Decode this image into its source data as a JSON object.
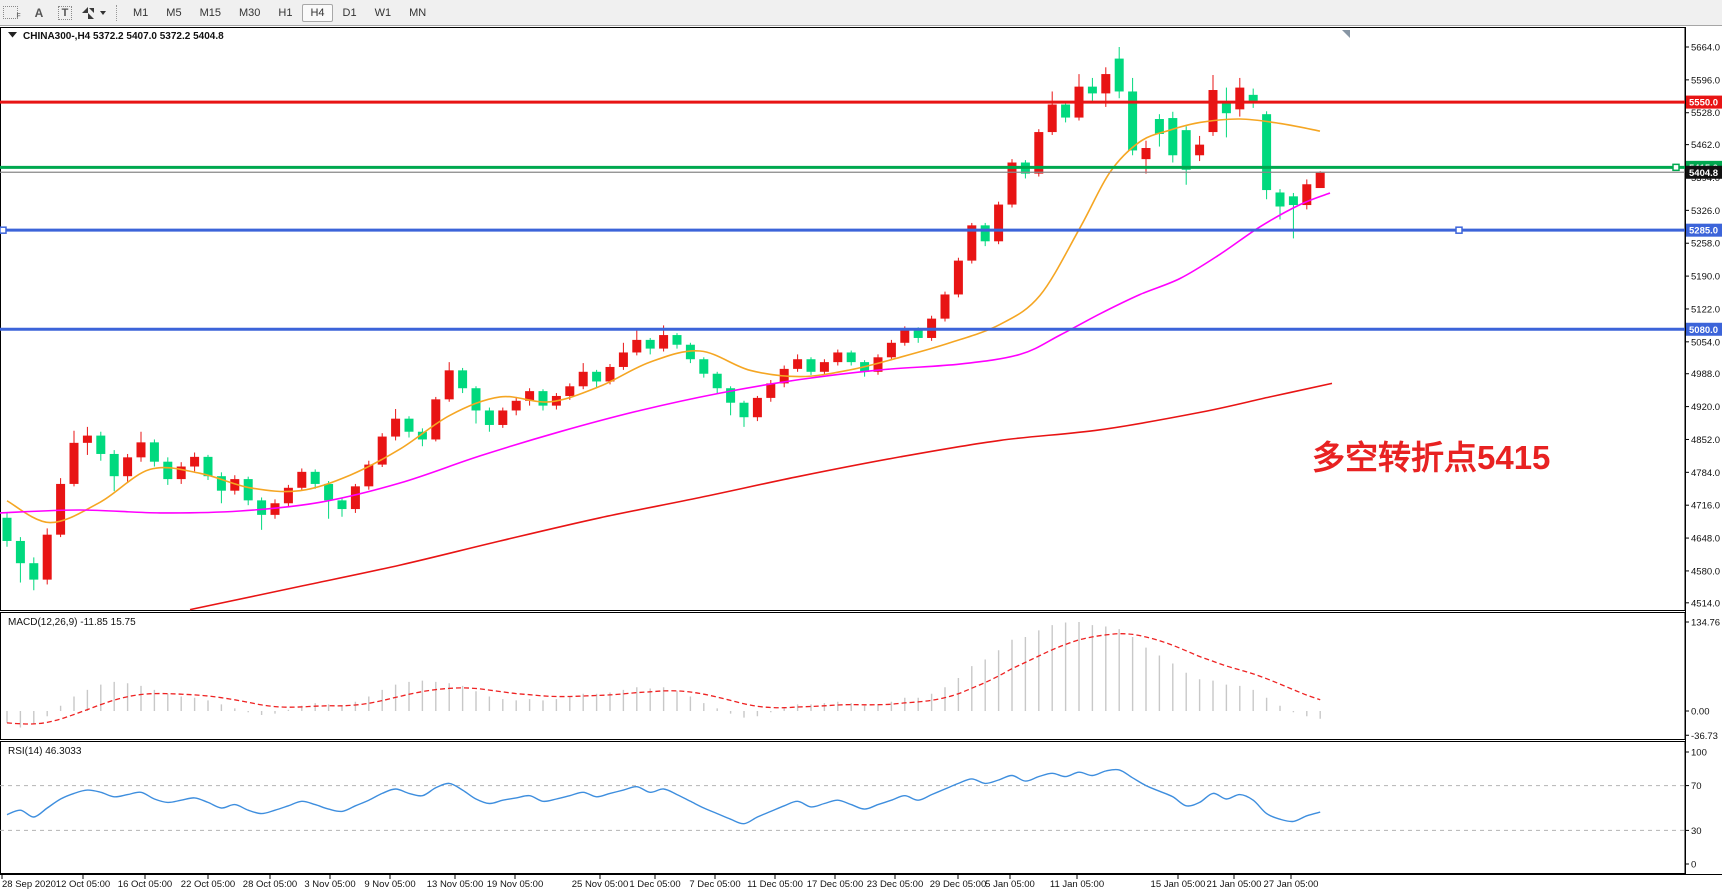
{
  "toolbar": {
    "tools": [
      {
        "name": "shapes-tool",
        "label": "F"
      },
      {
        "name": "text-tool",
        "label": "A"
      },
      {
        "name": "textbox-tool",
        "label": "T"
      },
      {
        "name": "arrow-tools",
        "label": ""
      }
    ],
    "timeframes": [
      "M1",
      "M5",
      "M15",
      "M30",
      "H1",
      "H4",
      "D1",
      "W1",
      "MN"
    ],
    "active_timeframe": "H4"
  },
  "chart": {
    "title_text": "CHINA300-,H4 5372.2 5407.0 5372.2 5404.8",
    "symbol": "CHINA300-",
    "period": "H4",
    "ohlc": {
      "open": "5372.2",
      "high": "5407.0",
      "low": "5372.2",
      "close": "5404.8"
    },
    "annotation": {
      "text": "多空转折点5415",
      "color": "#e82222"
    }
  },
  "chart_data": {
    "type": "candlestick",
    "title": "CHINA300- H4",
    "up_color_convention": "red-up-green-down",
    "ylim": [
      4514,
      5664
    ],
    "price_ticks": [
      5664.0,
      5596.0,
      5528.0,
      5462.0,
      5394.0,
      5326.0,
      5258.0,
      5190.0,
      5122.0,
      5054.0,
      4988.0,
      4920.0,
      4852.0,
      4784.0,
      4716.0,
      4648.0,
      4580.0,
      4514.0
    ],
    "current_price": {
      "value": 5404.8,
      "label": "5404.8"
    },
    "hlines": [
      {
        "price": 5550.0,
        "label": "5550.0",
        "color": "#e81414",
        "width": 3,
        "handles": []
      },
      {
        "price": 5415.0,
        "label": "5415.0",
        "color": "#00a84f",
        "width": 3,
        "handles": [
          1676
        ]
      },
      {
        "price": 5285.0,
        "label": "5285.0",
        "color": "#3c64d9",
        "width": 3,
        "handles": [
          3,
          1459
        ]
      },
      {
        "price": 5080.0,
        "label": "5080.0",
        "color": "#3c64d9",
        "width": 3,
        "handles": []
      }
    ],
    "date_ticks": [
      [
        2,
        "28 Sep 2020"
      ],
      [
        83,
        "12 Oct 05:00"
      ],
      [
        145,
        "16 Oct 05:00"
      ],
      [
        208,
        "22 Oct 05:00"
      ],
      [
        270,
        "28 Oct 05:00"
      ],
      [
        330,
        "3 Nov 05:00"
      ],
      [
        390,
        "9 Nov 05:00"
      ],
      [
        455,
        "13 Nov 05:00"
      ],
      [
        515,
        "19 Nov 05:00"
      ],
      [
        600,
        "25 Nov 05:00"
      ],
      [
        655,
        "1 Dec 05:00"
      ],
      [
        715,
        "7 Dec 05:00"
      ],
      [
        775,
        "11 Dec 05:00"
      ],
      [
        835,
        "17 Dec 05:00"
      ],
      [
        895,
        "23 Dec 05:00"
      ],
      [
        958,
        "29 Dec 05:00"
      ],
      [
        1010,
        "5 Jan 05:00"
      ],
      [
        1077,
        "11 Jan 05:00"
      ],
      [
        1178,
        "15 Jan 05:00"
      ],
      [
        1234,
        "21 Jan 05:00"
      ],
      [
        1291,
        "27 Jan 05:00"
      ]
    ],
    "candles": [
      [
        4690,
        4700,
        4630,
        4642
      ],
      [
        4642,
        4650,
        4556,
        4596
      ],
      [
        4596,
        4608,
        4540,
        4562
      ],
      [
        4562,
        4668,
        4552,
        4655
      ],
      [
        4655,
        4772,
        4650,
        4760
      ],
      [
        4760,
        4870,
        4755,
        4845
      ],
      [
        4845,
        4878,
        4820,
        4860
      ],
      [
        4860,
        4868,
        4808,
        4822
      ],
      [
        4822,
        4830,
        4745,
        4776
      ],
      [
        4776,
        4822,
        4762,
        4815
      ],
      [
        4815,
        4868,
        4806,
        4846
      ],
      [
        4846,
        4852,
        4796,
        4806
      ],
      [
        4806,
        4815,
        4758,
        4770
      ],
      [
        4770,
        4805,
        4760,
        4796
      ],
      [
        4796,
        4825,
        4786,
        4816
      ],
      [
        4816,
        4820,
        4768,
        4776
      ],
      [
        4776,
        4784,
        4720,
        4746
      ],
      [
        4746,
        4778,
        4738,
        4770
      ],
      [
        4770,
        4775,
        4716,
        4726
      ],
      [
        4726,
        4732,
        4665,
        4696
      ],
      [
        4696,
        4728,
        4688,
        4720
      ],
      [
        4720,
        4758,
        4712,
        4752
      ],
      [
        4752,
        4792,
        4746,
        4785
      ],
      [
        4785,
        4790,
        4750,
        4760
      ],
      [
        4760,
        4766,
        4688,
        4726
      ],
      [
        4726,
        4730,
        4692,
        4708
      ],
      [
        4708,
        4760,
        4700,
        4755
      ],
      [
        4755,
        4808,
        4748,
        4800
      ],
      [
        4800,
        4865,
        4795,
        4858
      ],
      [
        4858,
        4915,
        4850,
        4895
      ],
      [
        4895,
        4900,
        4856,
        4868
      ],
      [
        4868,
        4875,
        4838,
        4852
      ],
      [
        4852,
        4940,
        4848,
        4935
      ],
      [
        4935,
        5012,
        4930,
        4995
      ],
      [
        4995,
        5000,
        4948,
        4958
      ],
      [
        4958,
        4962,
        4885,
        4912
      ],
      [
        4912,
        4918,
        4868,
        4882
      ],
      [
        4882,
        4918,
        4876,
        4912
      ],
      [
        4912,
        4940,
        4902,
        4932
      ],
      [
        4932,
        4958,
        4922,
        4952
      ],
      [
        4952,
        4956,
        4912,
        4922
      ],
      [
        4922,
        4948,
        4914,
        4942
      ],
      [
        4942,
        4968,
        4934,
        4962
      ],
      [
        4962,
        5010,
        4956,
        4992
      ],
      [
        4992,
        4996,
        4960,
        4972
      ],
      [
        4972,
        5008,
        4966,
        5002
      ],
      [
        5002,
        5052,
        4996,
        5032
      ],
      [
        5032,
        5078,
        5026,
        5058
      ],
      [
        5058,
        5062,
        5028,
        5040
      ],
      [
        5040,
        5088,
        5034,
        5068
      ],
      [
        5068,
        5072,
        5040,
        5048
      ],
      [
        5048,
        5052,
        5010,
        5018
      ],
      [
        5018,
        5022,
        4980,
        4988
      ],
      [
        4988,
        4992,
        4948,
        4958
      ],
      [
        4958,
        4962,
        4902,
        4928
      ],
      [
        4928,
        4932,
        4878,
        4898
      ],
      [
        4898,
        4942,
        4890,
        4938
      ],
      [
        4938,
        4975,
        4930,
        4968
      ],
      [
        4968,
        5005,
        4960,
        4998
      ],
      [
        4998,
        5028,
        4992,
        5018
      ],
      [
        5018,
        5022,
        4985,
        4992
      ],
      [
        4992,
        5018,
        4986,
        5012
      ],
      [
        5012,
        5038,
        5005,
        5032
      ],
      [
        5032,
        5036,
        5005,
        5012
      ],
      [
        5012,
        5016,
        4982,
        4992
      ],
      [
        4992,
        5028,
        4986,
        5022
      ],
      [
        5022,
        5058,
        5016,
        5052
      ],
      [
        5052,
        5086,
        5046,
        5080
      ],
      [
        5080,
        5084,
        5052,
        5062
      ],
      [
        5062,
        5108,
        5056,
        5102
      ],
      [
        5102,
        5158,
        5096,
        5152
      ],
      [
        5152,
        5228,
        5146,
        5222
      ],
      [
        5222,
        5300,
        5216,
        5295
      ],
      [
        5295,
        5300,
        5252,
        5262
      ],
      [
        5262,
        5344,
        5256,
        5338
      ],
      [
        5338,
        5432,
        5332,
        5425
      ],
      [
        5425,
        5430,
        5392,
        5402
      ],
      [
        5402,
        5494,
        5396,
        5488
      ],
      [
        5488,
        5572,
        5482,
        5545
      ],
      [
        5545,
        5550,
        5508,
        5518
      ],
      [
        5518,
        5608,
        5512,
        5582
      ],
      [
        5582,
        5600,
        5548,
        5568
      ],
      [
        5568,
        5622,
        5540,
        5608
      ],
      [
        5640,
        5664,
        5558,
        5572
      ],
      [
        5572,
        5600,
        5440,
        5450
      ],
      [
        5432,
        5470,
        5402,
        5455
      ],
      [
        5515,
        5525,
        5458,
        5484
      ],
      [
        5517,
        5530,
        5425,
        5440
      ],
      [
        5492,
        5500,
        5379,
        5410
      ],
      [
        5440,
        5480,
        5428,
        5462
      ],
      [
        5488,
        5606,
        5480,
        5575
      ],
      [
        5550,
        5580,
        5477,
        5527
      ],
      [
        5535,
        5600,
        5520,
        5580
      ],
      [
        5565,
        5578,
        5538,
        5548
      ],
      [
        5525,
        5531,
        5349,
        5368
      ],
      [
        5363,
        5370,
        5307,
        5334
      ],
      [
        5355,
        5362,
        5268,
        5337
      ],
      [
        5337,
        5390,
        5328,
        5380
      ],
      [
        5372.2,
        5407,
        5372.2,
        5404.8
      ]
    ],
    "ma_fast": [
      [
        7,
        4725
      ],
      [
        50,
        4680
      ],
      [
        100,
        4722
      ],
      [
        150,
        4790
      ],
      [
        200,
        4782
      ],
      [
        250,
        4752
      ],
      [
        300,
        4746
      ],
      [
        350,
        4778
      ],
      [
        400,
        4832
      ],
      [
        450,
        4902
      ],
      [
        500,
        4940
      ],
      [
        550,
        4930
      ],
      [
        600,
        4962
      ],
      [
        650,
        5012
      ],
      [
        700,
        5035
      ],
      [
        750,
        4995
      ],
      [
        800,
        4982
      ],
      [
        850,
        4996
      ],
      [
        900,
        5022
      ],
      [
        950,
        5052
      ],
      [
        1000,
        5090
      ],
      [
        1040,
        5150
      ],
      [
        1080,
        5290
      ],
      [
        1110,
        5405
      ],
      [
        1140,
        5468
      ],
      [
        1170,
        5492
      ],
      [
        1200,
        5508
      ],
      [
        1240,
        5515
      ],
      [
        1280,
        5506
      ],
      [
        1320,
        5490
      ]
    ],
    "ma_mid": [
      [
        0,
        4700
      ],
      [
        80,
        4706
      ],
      [
        160,
        4700
      ],
      [
        240,
        4704
      ],
      [
        320,
        4722
      ],
      [
        400,
        4762
      ],
      [
        480,
        4818
      ],
      [
        560,
        4868
      ],
      [
        640,
        4912
      ],
      [
        720,
        4948
      ],
      [
        800,
        4976
      ],
      [
        880,
        4996
      ],
      [
        960,
        5008
      ],
      [
        1020,
        5028
      ],
      [
        1060,
        5068
      ],
      [
        1100,
        5112
      ],
      [
        1140,
        5152
      ],
      [
        1180,
        5185
      ],
      [
        1220,
        5235
      ],
      [
        1260,
        5292
      ],
      [
        1300,
        5338
      ],
      [
        1330,
        5362
      ]
    ],
    "ma_slow": [
      [
        190,
        4500
      ],
      [
        300,
        4548
      ],
      [
        400,
        4592
      ],
      [
        500,
        4642
      ],
      [
        600,
        4690
      ],
      [
        700,
        4732
      ],
      [
        800,
        4776
      ],
      [
        900,
        4816
      ],
      [
        1000,
        4850
      ],
      [
        1100,
        4872
      ],
      [
        1200,
        4908
      ],
      [
        1270,
        4940
      ],
      [
        1332,
        4968
      ]
    ]
  },
  "macd": {
    "label": "MACD(12,26,9) -11.85 15.75",
    "main_value": "-11.85",
    "signal_value": "15.75",
    "ticks": [
      {
        "v": 134.76,
        "t": "134.76"
      },
      {
        "v": 0,
        "t": "0.00"
      },
      {
        "v": -36.73,
        "t": "-36.73"
      }
    ],
    "values": [
      -18,
      -25,
      -20,
      -8,
      8,
      22,
      32,
      40,
      44,
      42,
      38,
      32,
      26,
      22,
      20,
      16,
      10,
      4,
      -2,
      -6,
      -4,
      2,
      8,
      12,
      10,
      8,
      14,
      22,
      32,
      40,
      44,
      46,
      44,
      42,
      38,
      30,
      22,
      18,
      16,
      18,
      16,
      18,
      22,
      26,
      26,
      28,
      32,
      36,
      34,
      36,
      30,
      22,
      12,
      4,
      -4,
      -10,
      -8,
      -2,
      4,
      10,
      10,
      12,
      14,
      12,
      8,
      10,
      14,
      20,
      20,
      26,
      36,
      50,
      68,
      78,
      92,
      108,
      112,
      122,
      130,
      134,
      134.76,
      130,
      128,
      124,
      112,
      96,
      84,
      72,
      58,
      48,
      46,
      40,
      38,
      32,
      20,
      8,
      -2,
      -8,
      -11.85
    ]
  },
  "rsi": {
    "label": "RSI(14) 46.3033",
    "value": "46.3033",
    "levels": [
      70,
      30
    ],
    "ticks": [
      {
        "v": 100,
        "t": "100"
      },
      {
        "v": 70,
        "t": "70"
      },
      {
        "v": 30,
        "t": "30"
      },
      {
        "v": 0,
        "t": "0"
      }
    ],
    "values": [
      44,
      48,
      42,
      50,
      58,
      63,
      66,
      64,
      60,
      62,
      64,
      58,
      55,
      57,
      59,
      55,
      50,
      53,
      48,
      45,
      48,
      52,
      56,
      53,
      49,
      47,
      52,
      57,
      63,
      67,
      63,
      61,
      68,
      72,
      66,
      58,
      54,
      57,
      59,
      61,
      56,
      58,
      61,
      64,
      60,
      63,
      66,
      69,
      64,
      67,
      62,
      56,
      50,
      45,
      40,
      36,
      42,
      47,
      52,
      56,
      51,
      54,
      57,
      53,
      49,
      53,
      57,
      61,
      57,
      62,
      67,
      72,
      76,
      72,
      75,
      79,
      74,
      78,
      81,
      78,
      82,
      79,
      83,
      84,
      77,
      70,
      65,
      60,
      52,
      55,
      63,
      58,
      62,
      57,
      45,
      40,
      38,
      43,
      46.3
    ]
  },
  "colors": {
    "up": "#e81414",
    "down": "#00d97e",
    "ma_fast": "#f5a623",
    "ma_mid": "#ff00ff",
    "ma_slow": "#e81414",
    "price_line": "#888888",
    "price_label_bg": "#111111",
    "macd_hist": "#c8c8c8",
    "macd_signal": "#ee2222",
    "rsi_line": "#3e8ede",
    "rsi_level": "#b4b4b4",
    "panel_border": "#000000",
    "shift_marker": "#8896a4"
  }
}
